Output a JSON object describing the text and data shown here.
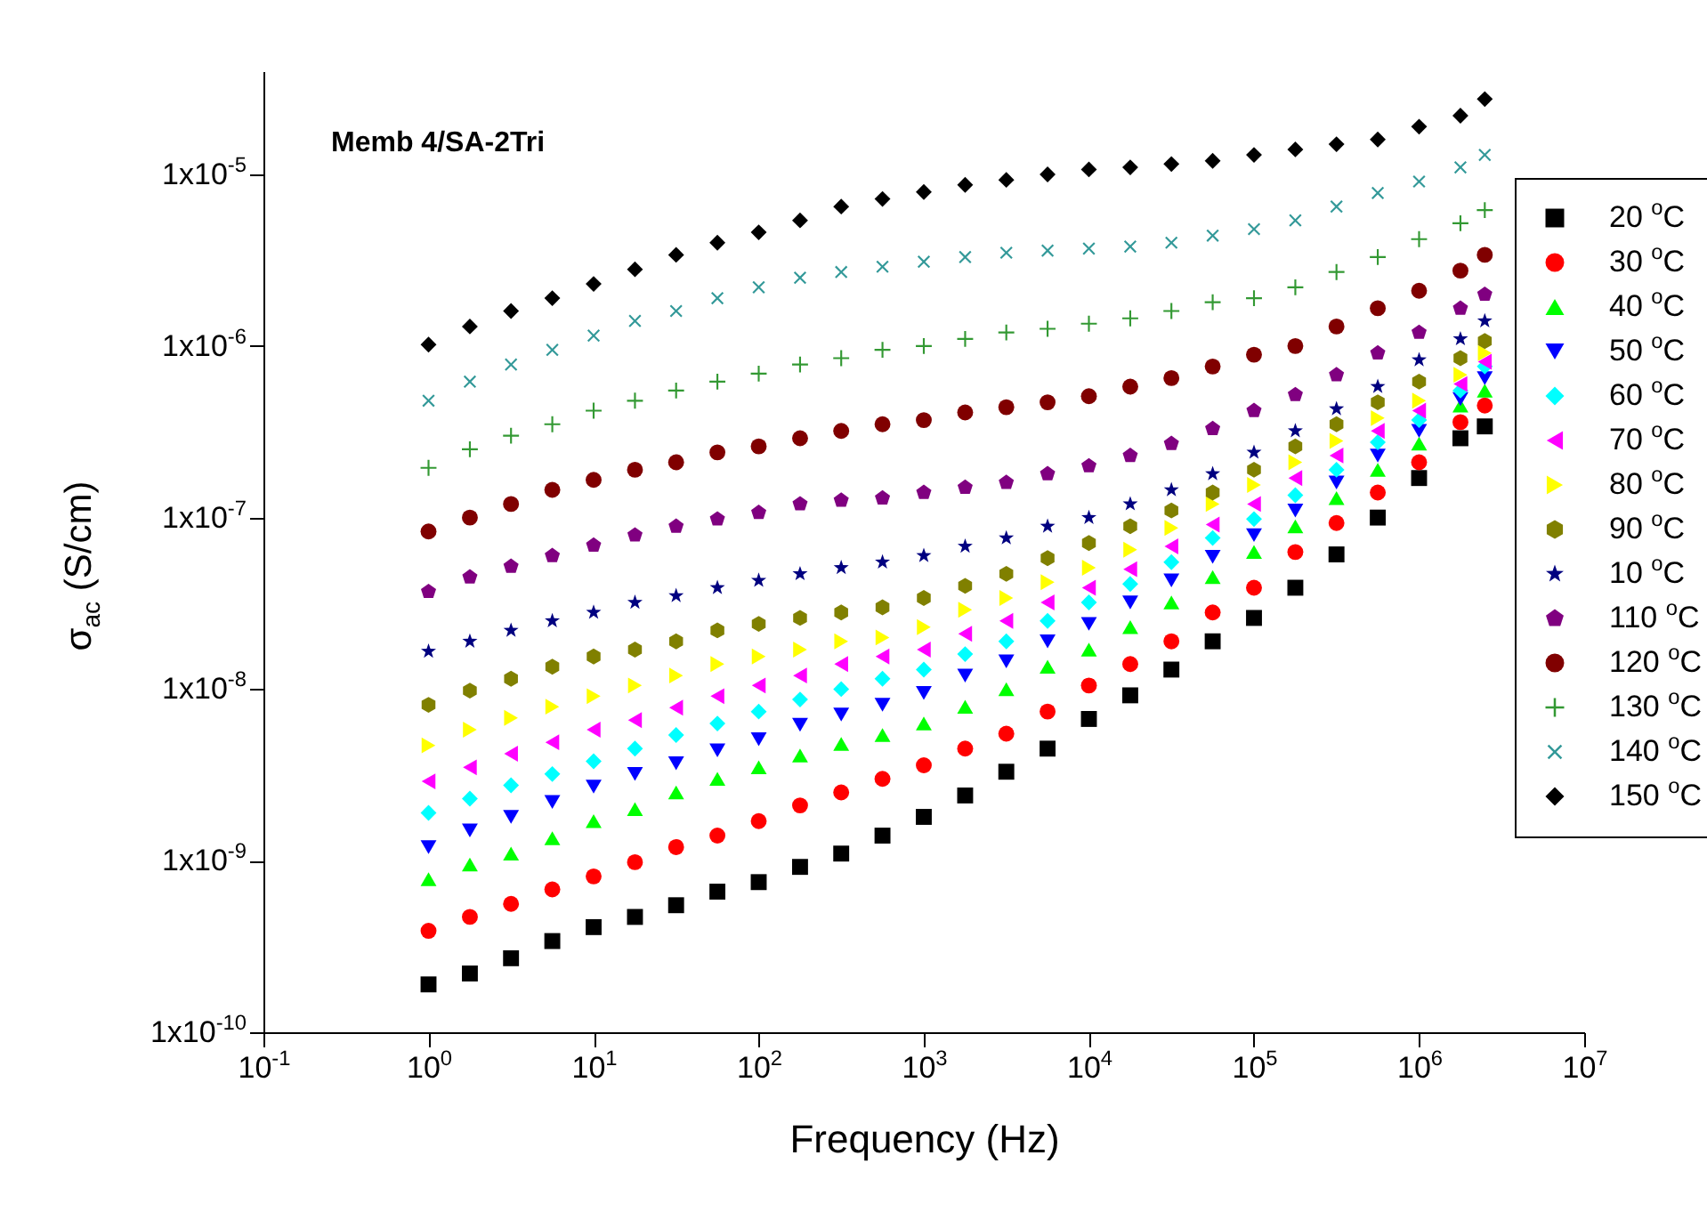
{
  "chart_data": {
    "type": "scatter",
    "title": "Memb 4/SA-2Tri",
    "xlabel": "Frequency (Hz)",
    "ylabel": "σ$_{ac}$ (S/cm)",
    "log": "xy",
    "grid": false,
    "legend": "right",
    "xlim": [
      0.1,
      10000000
    ],
    "xticks": [
      {
        "value": 0.1,
        "label": "10$^{-1}$"
      },
      {
        "value": 1,
        "label": "10$^{0}$"
      },
      {
        "value": 10,
        "label": "10$^{1}$"
      },
      {
        "value": 100,
        "label": "10$^{2}$"
      },
      {
        "value": 1000,
        "label": "10$^{3}$"
      },
      {
        "value": 10000,
        "label": "10$^{4}$"
      },
      {
        "value": 100000,
        "label": "10$^{5}$"
      },
      {
        "value": 1000000,
        "label": "10$^{6}$"
      },
      {
        "value": 10000000,
        "label": "10$^{7}$"
      }
    ],
    "ylim": [
      1e-10,
      4e-05
    ],
    "yticks": [
      {
        "value": 1e-10,
        "label": "1x10$^{-10}$"
      },
      {
        "value": 1e-09,
        "label": "1x10$^{-9}$"
      },
      {
        "value": 1e-08,
        "label": "1x10$^{-8}$"
      },
      {
        "value": 1e-07,
        "label": "1x10$^{-7}$"
      },
      {
        "value": 1e-06,
        "label": "1x10$^{-6}$"
      },
      {
        "value": 1e-05,
        "label": "1x10$^{-5}$"
      }
    ],
    "x": [
      1,
      1.78,
      3.16,
      5.62,
      10,
      17.8,
      31.6,
      56.2,
      100,
      178,
      316,
      562,
      1000,
      1780,
      3160,
      5620,
      10000,
      17800,
      31600,
      56200,
      100000,
      178000,
      316000,
      562000,
      1000000,
      1780000,
      2500000
    ],
    "series": [
      {
        "name": "20 $^{o}$C",
        "color": "#000000",
        "marker": "square",
        "values": [
          1.9e-10,
          2.2e-10,
          2.7e-10,
          3.4e-10,
          4.1e-10,
          4.7e-10,
          5.5e-10,
          6.6e-10,
          7.5e-10,
          9.2e-10,
          1.1e-09,
          1.4e-09,
          1.8e-09,
          2.4e-09,
          3.3e-09,
          4.5e-09,
          6.7e-09,
          9.2e-09,
          1.3e-08,
          1.9e-08,
          2.6e-08,
          3.9e-08,
          6.1e-08,
          1e-07,
          1.7e-07,
          2.9e-07,
          3.4e-07
        ]
      },
      {
        "name": "30 $^{o}$C",
        "color": "#ff0000",
        "marker": "circle",
        "values": [
          3.9e-10,
          4.7e-10,
          5.6e-10,
          6.8e-10,
          8.1e-10,
          9.8e-10,
          1.2e-09,
          1.4e-09,
          1.7e-09,
          2.1e-09,
          2.5e-09,
          3e-09,
          3.6e-09,
          4.5e-09,
          5.5e-09,
          7.4e-09,
          1.05e-08,
          1.4e-08,
          1.9e-08,
          2.8e-08,
          3.9e-08,
          6.3e-08,
          9.3e-08,
          1.4e-07,
          2.1e-07,
          3.6e-07,
          4.5e-07
        ]
      },
      {
        "name": "40 $^{o}$C",
        "color": "#00ff00",
        "marker": "triangle",
        "values": [
          7.8e-10,
          9.5e-10,
          1.1e-09,
          1.35e-09,
          1.7e-09,
          2e-09,
          2.5e-09,
          3e-09,
          3.5e-09,
          4.1e-09,
          4.8e-09,
          5.4e-09,
          6.3e-09,
          7.9e-09,
          1e-08,
          1.35e-08,
          1.7e-08,
          2.3e-08,
          3.2e-08,
          4.5e-08,
          6.3e-08,
          8.9e-08,
          1.3e-07,
          1.9e-07,
          2.7e-07,
          4.5e-07,
          5.5e-07
        ]
      },
      {
        "name": "50 $^{o}$C",
        "color": "#0000ff",
        "marker": "triangle-down",
        "values": [
          1.2e-09,
          1.5e-09,
          1.8e-09,
          2.2e-09,
          2.7e-09,
          3.2e-09,
          3.7e-09,
          4.4e-09,
          5.1e-09,
          6.2e-09,
          7.1e-09,
          8.1e-09,
          9.5e-09,
          1.2e-08,
          1.45e-08,
          1.9e-08,
          2.4e-08,
          3.2e-08,
          4.3e-08,
          5.9e-08,
          7.9e-08,
          1.1e-07,
          1.6e-07,
          2.3e-07,
          3.2e-07,
          4.9e-07,
          6.5e-07
        ]
      },
      {
        "name": "60 $^{o}$C",
        "color": "#00ffff",
        "marker": "diamond",
        "values": [
          1.9e-09,
          2.3e-09,
          2.75e-09,
          3.2e-09,
          3.8e-09,
          4.5e-09,
          5.4e-09,
          6.3e-09,
          7.4e-09,
          8.7e-09,
          1e-08,
          1.15e-08,
          1.3e-08,
          1.6e-08,
          1.9e-08,
          2.5e-08,
          3.2e-08,
          4.1e-08,
          5.5e-08,
          7.6e-08,
          9.8e-08,
          1.35e-07,
          1.9e-07,
          2.75e-07,
          3.7e-07,
          5.5e-07,
          7.6e-07
        ]
      },
      {
        "name": "70 $^{o}$C",
        "color": "#ff00ff",
        "marker": "triangle-left",
        "values": [
          2.9e-09,
          3.5e-09,
          4.2e-09,
          4.9e-09,
          5.8e-09,
          6.6e-09,
          7.8e-09,
          9.1e-09,
          1.05e-08,
          1.2e-08,
          1.4e-08,
          1.55e-08,
          1.7e-08,
          2.1e-08,
          2.5e-08,
          3.2e-08,
          3.9e-08,
          5e-08,
          6.8e-08,
          9.1e-08,
          1.2e-07,
          1.7e-07,
          2.3e-07,
          3.2e-07,
          4.2e-07,
          6e-07,
          8.1e-07
        ]
      },
      {
        "name": "80 $^{o}$C",
        "color": "#ffff00",
        "marker": "triangle-right",
        "values": [
          4.7e-09,
          5.8e-09,
          6.8e-09,
          7.9e-09,
          9.1e-09,
          1.05e-08,
          1.2e-08,
          1.4e-08,
          1.55e-08,
          1.7e-08,
          1.9e-08,
          2e-08,
          2.3e-08,
          2.9e-08,
          3.4e-08,
          4.2e-08,
          5.1e-08,
          6.5e-08,
          8.7e-08,
          1.2e-07,
          1.55e-07,
          2.1e-07,
          2.8e-07,
          3.8e-07,
          4.8e-07,
          6.8e-07,
          9.1e-07
        ]
      },
      {
        "name": "90 $^{o}$C",
        "color": "#808000",
        "values": [
          8.1e-09,
          9.8e-09,
          1.15e-08,
          1.35e-08,
          1.55e-08,
          1.7e-08,
          1.9e-08,
          2.2e-08,
          2.4e-08,
          2.6e-08,
          2.8e-08,
          3e-08,
          3.4e-08,
          4e-08,
          4.7e-08,
          5.8e-08,
          7.1e-08,
          8.9e-08,
          1.1e-07,
          1.4e-07,
          1.9e-07,
          2.6e-07,
          3.5e-07,
          4.7e-07,
          6.2e-07,
          8.5e-07,
          1.07e-06
        ]
      },
      {
        "name": "10 $^{o}$C",
        "color": "#000080",
        "marker": "star",
        "values": [
          1.66e-08,
          1.9e-08,
          2.2e-08,
          2.5e-08,
          2.8e-08,
          3.2e-08,
          3.5e-08,
          3.9e-08,
          4.3e-08,
          4.7e-08,
          5.1e-08,
          5.5e-08,
          6e-08,
          6.8e-08,
          7.6e-08,
          8.9e-08,
          1e-07,
          1.2e-07,
          1.45e-07,
          1.8e-07,
          2.4e-07,
          3.2e-07,
          4.3e-07,
          5.8e-07,
          8.3e-07,
          1.1e-06,
          1.4e-06
        ]
      },
      {
        "name": "110 $^{o}$C",
        "color": "#800080",
        "values": [
          3.7e-08,
          4.5e-08,
          5.2e-08,
          6e-08,
          6.9e-08,
          7.9e-08,
          8.9e-08,
          9.8e-08,
          1.07e-07,
          1.2e-07,
          1.26e-07,
          1.3e-07,
          1.4e-07,
          1.5e-07,
          1.6e-07,
          1.8e-07,
          2e-07,
          2.3e-07,
          2.7e-07,
          3.3e-07,
          4.2e-07,
          5.2e-07,
          6.8e-07,
          9.1e-07,
          1.2e-06,
          1.66e-06,
          2e-06
        ]
      },
      {
        "name": "120 $^{o}$C",
        "color": "#800000",
        "marker": "circle",
        "values": [
          8.3e-08,
          1e-07,
          1.2e-07,
          1.45e-07,
          1.66e-07,
          1.9e-07,
          2.1e-07,
          2.4e-07,
          2.6e-07,
          2.9e-07,
          3.2e-07,
          3.5e-07,
          3.7e-07,
          4.1e-07,
          4.4e-07,
          4.7e-07,
          5.1e-07,
          5.8e-07,
          6.5e-07,
          7.6e-07,
          8.9e-07,
          1e-06,
          1.3e-06,
          1.66e-06,
          2.1e-06,
          2.75e-06,
          3.4e-06
        ]
      },
      {
        "name": "130 $^{o}$C",
        "color": "#339933",
        "marker": "plus",
        "values": [
          1.95e-07,
          2.5e-07,
          3e-07,
          3.5e-07,
          4.2e-07,
          4.8e-07,
          5.5e-07,
          6.2e-07,
          6.9e-07,
          7.8e-07,
          8.5e-07,
          9.5e-07,
          1e-06,
          1.1e-06,
          1.2e-06,
          1.26e-06,
          1.35e-06,
          1.45e-06,
          1.6e-06,
          1.8e-06,
          1.9e-06,
          2.2e-06,
          2.7e-06,
          3.3e-06,
          4.2e-06,
          5.2e-06,
          6.2e-06
        ]
      },
      {
        "name": "140 $^{o}$C",
        "color": "#339999",
        "marker": "cross",
        "values": [
          4.8e-07,
          6.2e-07,
          7.8e-07,
          9.5e-07,
          1.15e-06,
          1.4e-06,
          1.6e-06,
          1.9e-06,
          2.2e-06,
          2.5e-06,
          2.7e-06,
          2.9e-06,
          3.1e-06,
          3.3e-06,
          3.5e-06,
          3.6e-06,
          3.7e-06,
          3.8e-06,
          4e-06,
          4.4e-06,
          4.8e-06,
          5.4e-06,
          6.5e-06,
          7.8e-06,
          9.1e-06,
          1.1e-05,
          1.3e-05
        ]
      },
      {
        "name": "150 $^{o}$C",
        "color": "#000000",
        "marker": "diamond",
        "values": [
          1.02e-06,
          1.3e-06,
          1.6e-06,
          1.9e-06,
          2.3e-06,
          2.8e-06,
          3.4e-06,
          4e-06,
          4.6e-06,
          5.4e-06,
          6.5e-06,
          7.2e-06,
          7.9e-06,
          8.7e-06,
          9.3e-06,
          1e-05,
          1.07e-05,
          1.1e-05,
          1.15e-05,
          1.2e-05,
          1.3e-05,
          1.4e-05,
          1.5e-05,
          1.6e-05,
          1.9e-05,
          2.2e-05,
          2.75e-05
        ]
      }
    ]
  }
}
